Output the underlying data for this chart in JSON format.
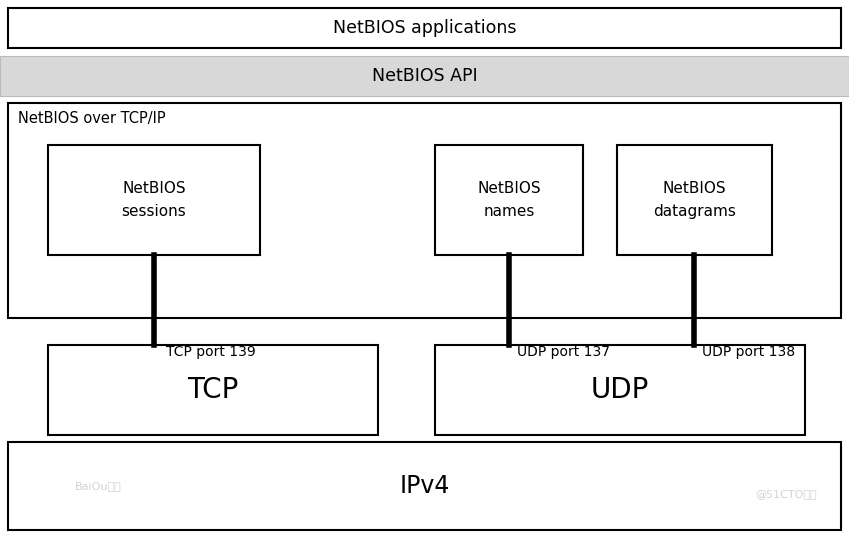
{
  "bg_color": "#ffffff",
  "shadow_color": "#bbbbbb",
  "api_bg": "#d8d8d8",
  "title_netbios_apps": "NetBIOS applications",
  "title_netbios_api": "NetBIOS API",
  "title_netbios_over": "NetBIOS over TCP/IP",
  "title_sessions": "NetBIOS\nsessions",
  "title_names": "NetBIOS\nnames",
  "title_datagrams": "NetBIOS\ndatagrams",
  "title_tcp": "TCP",
  "title_udp": "UDP",
  "title_ipv4": "IPv4",
  "label_tcp_port": "TCP port 139",
  "label_udp_port137": "UDP port 137",
  "label_udp_port138": "UDP port 138",
  "watermark_left": "BaiOu博客",
  "watermark_right": "@51CTO博客",
  "fig_w": 8.49,
  "fig_h": 5.37,
  "dpi": 100
}
